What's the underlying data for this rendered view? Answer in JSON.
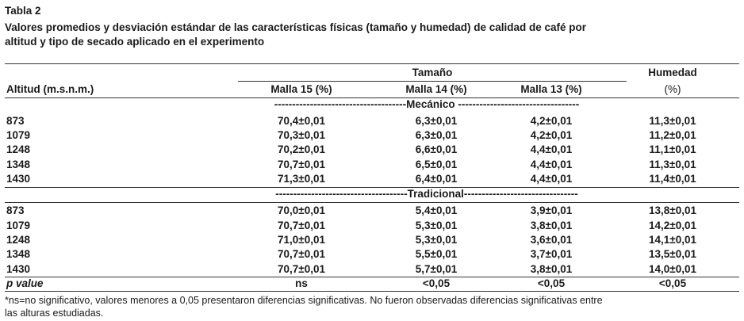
{
  "title": "Tabla 2",
  "caption": [
    "Valores promedios y desviación estándar de las características físicas (tamaño y humedad) de calidad de café por",
    "altitud y tipo de secado aplicado en el experimento"
  ],
  "table": {
    "header": {
      "altitud": "Altitud (m.s.n.m.)",
      "tamano": "Tamaño",
      "humedad": [
        "Humedad",
        "(%)"
      ],
      "columns": [
        "Malla 15 (%)",
        "Malla 14 (%)",
        "Malla 13 (%)"
      ]
    },
    "sections": [
      {
        "label": "-------------------------------------Mecánico ----------------------------------",
        "rows": [
          [
            "873",
            "70,4±0,01",
            "6,3±0,01",
            "4,2±0,01",
            "11,3±0,01"
          ],
          [
            "1079",
            "70,3±0,01",
            "6,3±0,01",
            "4,2±0,01",
            "11,2±0,01"
          ],
          [
            "1248",
            "70,2±0,01",
            "6,6±0,01",
            "4,4±0,01",
            "11,1±0,01"
          ],
          [
            "1348",
            "70,7±0,01",
            "6,5±0,01",
            "4,4±0,01",
            "11,3±0,01"
          ],
          [
            "1430",
            "71,3±0,01",
            "6,4±0,01",
            "4,4±0,01",
            "11,4±0,01"
          ]
        ]
      },
      {
        "label": "-------------------------------------Tradicional--------------------------------",
        "rows": [
          [
            "873",
            "70,0±0,01",
            "5,4±0,01",
            "3,9±0,01",
            "13,8±0,01"
          ],
          [
            "1079",
            "70,7±0,01",
            "5,3±0,01",
            "3,8±0,01",
            "14,2±0,01"
          ],
          [
            "1248",
            "71,0±0,01",
            "5,3±0,01",
            "3,6±0,01",
            "14,1±0,01"
          ],
          [
            "1348",
            "70,7±0,01",
            "5,5±0,01",
            "3,7±0,01",
            "13,5±0,01"
          ],
          [
            "1430",
            "70,7±0,01",
            "5,7±0,01",
            "3,8±0,01",
            "14,0±0,01"
          ]
        ]
      }
    ],
    "pvalue": [
      "p value",
      "ns",
      "<0,05",
      "<0,05",
      "<0,05"
    ]
  },
  "footnote": [
    "*ns=no significativo, valores menores a 0,05 presentaron diferencias significativas. No fueron observadas diferencias significativas entre",
    "las alturas estudiadas."
  ]
}
